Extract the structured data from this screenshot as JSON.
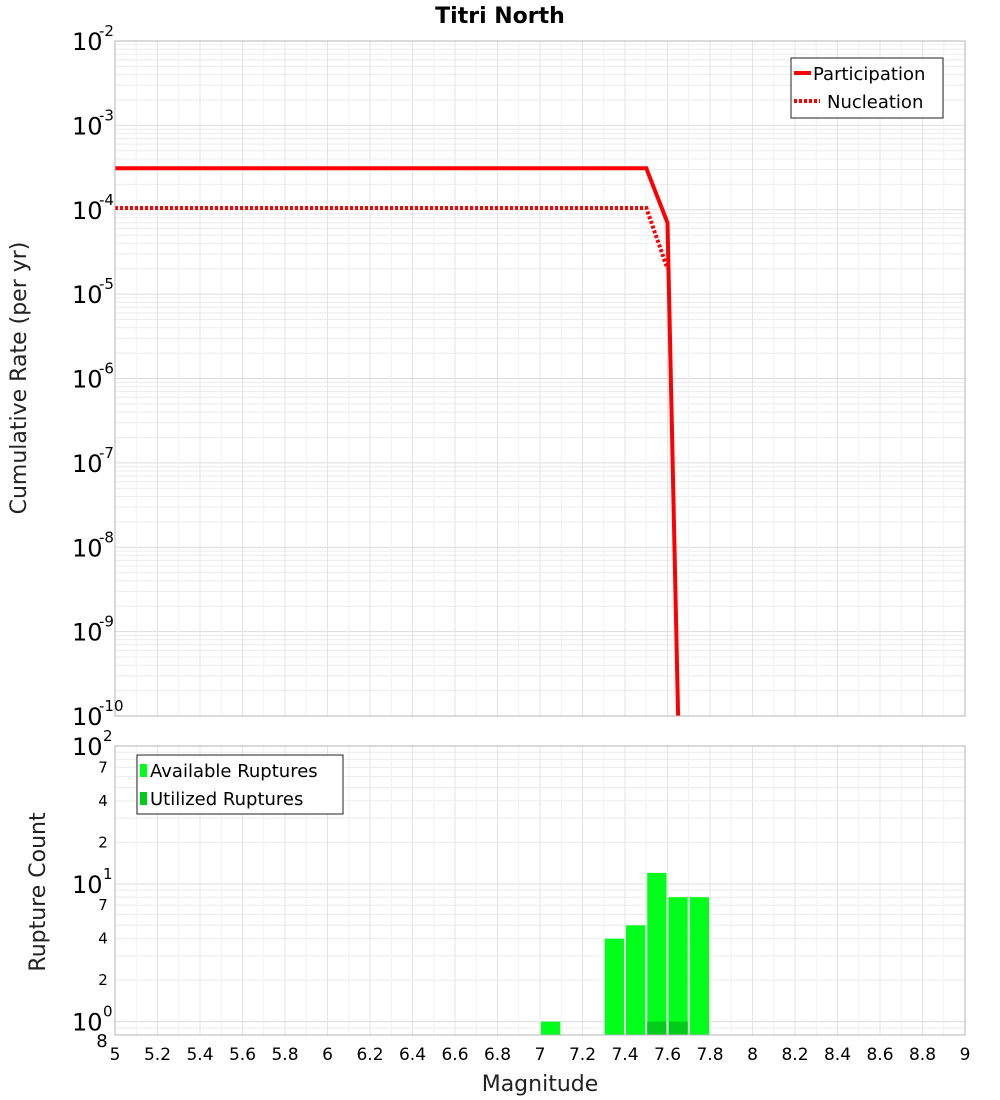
{
  "chart_data": [
    {
      "type": "line",
      "title": "Titri North",
      "ylabel": "Cumulative Rate (per yr)",
      "xlabel": "",
      "yscale": "log",
      "xlim": [
        5,
        9
      ],
      "ylim": [
        1e-10,
        0.01
      ],
      "y_tick_labels": [
        {
          "base": "10",
          "exp": "-10"
        },
        {
          "base": "10",
          "exp": "-9"
        },
        {
          "base": "10",
          "exp": "-8"
        },
        {
          "base": "10",
          "exp": "-7"
        },
        {
          "base": "10",
          "exp": "-6"
        },
        {
          "base": "10",
          "exp": "-5"
        },
        {
          "base": "10",
          "exp": "-4"
        },
        {
          "base": "10",
          "exp": "-3"
        },
        {
          "base": "10",
          "exp": "-2"
        }
      ],
      "legend_position": "top-right",
      "series": [
        {
          "name": "Participation",
          "style": "solid",
          "color": "#ff0000",
          "x": [
            5.0,
            7.5,
            7.6,
            7.65
          ],
          "y": [
            0.00031,
            0.00031,
            7e-05,
            1e-10
          ]
        },
        {
          "name": "Nucleation",
          "style": "dotted",
          "color": "#ff0000",
          "x": [
            5.0,
            7.5,
            7.6
          ],
          "y": [
            0.000105,
            0.000105,
            2e-05
          ]
        }
      ]
    },
    {
      "type": "bar",
      "title": "",
      "ylabel": "Rupture Count",
      "xlabel": "Magnitude",
      "yscale": "log",
      "xlim": [
        5,
        9
      ],
      "ylim": [
        0.8,
        100
      ],
      "x_ticks": [
        "5",
        "5.2",
        "5.4",
        "5.6",
        "5.8",
        "6",
        "6.2",
        "6.4",
        "6.6",
        "6.8",
        "7",
        "7.2",
        "7.4",
        "7.6",
        "7.8",
        "8",
        "8.2",
        "8.4",
        "8.6",
        "8.8",
        "9"
      ],
      "y_tick_labels": [
        {
          "base": "10",
          "exp": "0"
        },
        {
          "base": "10",
          "exp": "1"
        },
        {
          "base": "10",
          "exp": "2"
        }
      ],
      "y_minor_labels": [
        "8",
        "2",
        "4",
        "7",
        "2",
        "4",
        "7"
      ],
      "legend_position": "top-left",
      "bin_width": 0.1,
      "series": [
        {
          "name": "Available Ruptures",
          "color": "#00ff1a",
          "x": [
            7.05,
            7.35,
            7.45,
            7.55,
            7.65,
            7.75
          ],
          "values": [
            1,
            4,
            5,
            12,
            8,
            8
          ]
        },
        {
          "name": "Utilized Ruptures",
          "color": "#00cc1a",
          "x": [
            7.55,
            7.65
          ],
          "values": [
            1,
            1
          ]
        }
      ]
    }
  ]
}
